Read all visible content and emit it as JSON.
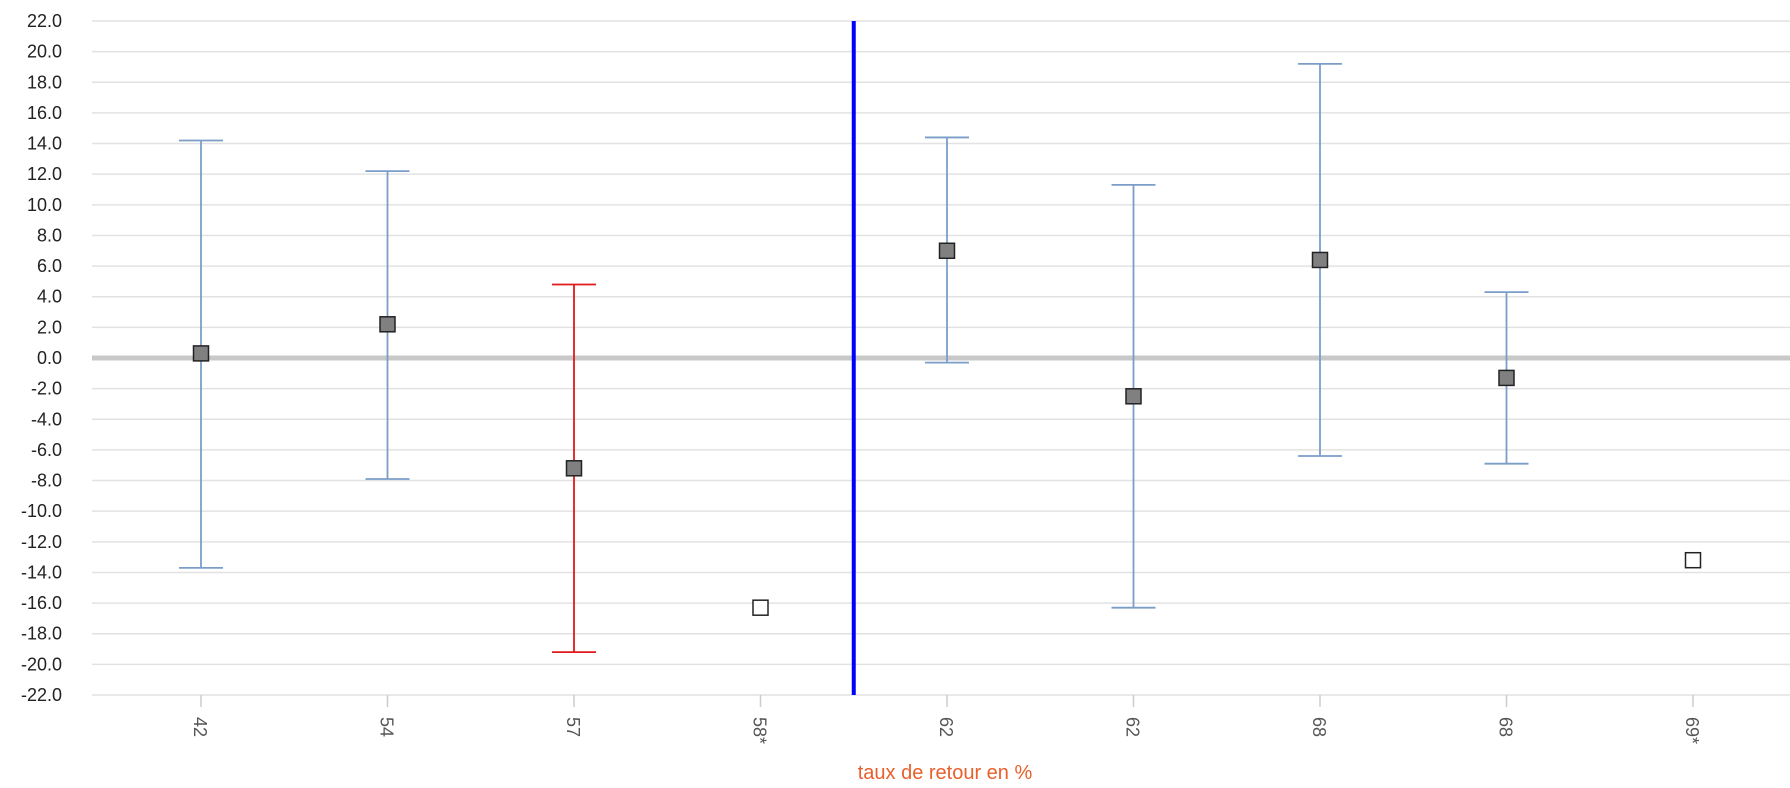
{
  "chart_data": {
    "type": "scatter",
    "title": "",
    "xlabel": "taux de retour en %",
    "ylabel": "",
    "ylim": [
      -22,
      22
    ],
    "ytick_step": 2,
    "grid": true,
    "categories": [
      "42",
      "54",
      "57",
      "58*",
      "62",
      "62",
      "68",
      "68",
      "69*"
    ],
    "points": [
      {
        "label": "42",
        "value": 0.3,
        "low": -13.7,
        "high": 14.2,
        "highlight": false,
        "has_ci": true
      },
      {
        "label": "54",
        "value": 2.2,
        "low": -7.9,
        "high": 12.2,
        "highlight": false,
        "has_ci": true
      },
      {
        "label": "57",
        "value": -7.2,
        "low": -19.2,
        "high": 4.8,
        "highlight": true,
        "has_ci": true
      },
      {
        "label": "58*",
        "value": -16.3,
        "low": null,
        "high": null,
        "highlight": false,
        "has_ci": false
      },
      {
        "label": "62",
        "value": 7.0,
        "low": -0.3,
        "high": 14.4,
        "highlight": false,
        "has_ci": true
      },
      {
        "label": "62",
        "value": -2.5,
        "low": -16.3,
        "high": 11.3,
        "highlight": false,
        "has_ci": true
      },
      {
        "label": "68",
        "value": 6.4,
        "low": -6.4,
        "high": 19.2,
        "highlight": false,
        "has_ci": true
      },
      {
        "label": "68",
        "value": -1.3,
        "low": -6.9,
        "high": 4.3,
        "highlight": false,
        "has_ci": true
      },
      {
        "label": "69*",
        "value": -13.2,
        "low": null,
        "high": null,
        "highlight": false,
        "has_ci": false
      }
    ],
    "reference_line_after_index": 3,
    "colors": {
      "ci": "#7a9ec8",
      "ci_highlight": "#e0191c",
      "marker_fill": "#808080",
      "marker_empty_fill": "#ffffff",
      "marker_stroke": "#222222",
      "reference_line": "#0000ff",
      "zero_line": "#c8c8c8",
      "grid": "#e2e2e2",
      "xlabel": "#e8602c",
      "tick_highlight": "#e0191c"
    }
  }
}
